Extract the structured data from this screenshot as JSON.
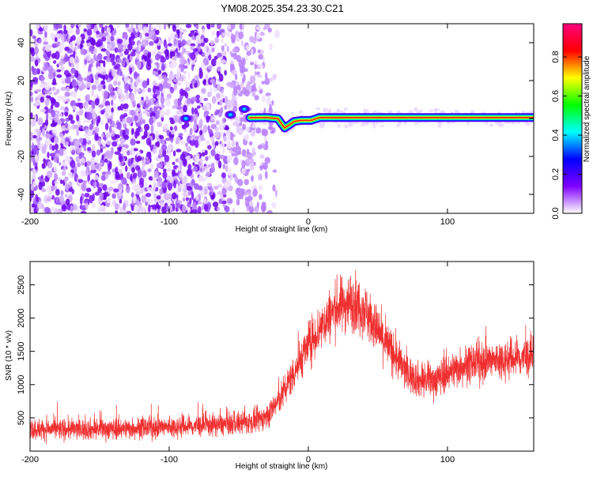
{
  "title": "YM08.2025.354.23.30.C21",
  "chart_data": [
    {
      "type": "heatmap",
      "name": "spectrogram",
      "xlabel": "Height of straight line (km)",
      "ylabel": "Frequency (Hz)",
      "xlim": [
        -200,
        162
      ],
      "ylim": [
        -50,
        50
      ],
      "xticks": [
        -200,
        -100,
        0,
        100
      ],
      "xtick_labels": [
        "-200",
        "-100",
        "0",
        "100"
      ],
      "yticks": [
        -40,
        -20,
        0,
        20,
        40
      ],
      "ytick_labels": [
        "-40",
        "-20",
        "0",
        "20",
        "40"
      ],
      "colorbar": {
        "label": "Normalized spectral amplitude",
        "range": [
          0,
          0.97
        ],
        "ticks": [
          0.0,
          0.2,
          0.4,
          0.6,
          0.8
        ],
        "tick_labels": [
          "0.0",
          "0.2",
          "0.4",
          "0.6",
          "0.8"
        ],
        "colors": [
          "#ffffff",
          "#8000ff",
          "#0000ff",
          "#00ffff",
          "#00ff00",
          "#ffff00",
          "#ff0000",
          "#ff0080"
        ]
      },
      "band": {
        "x_start": -42,
        "x_end": 162,
        "center_profile": [
          [
            -42,
            0.4
          ],
          [
            -30,
            0.5
          ],
          [
            -22,
            0
          ],
          [
            -17,
            -5
          ],
          [
            -14,
            -3.5
          ],
          [
            -10,
            -1.5
          ],
          [
            -5,
            -1
          ],
          [
            2,
            -1
          ],
          [
            6,
            0
          ],
          [
            8,
            0.5
          ],
          [
            162,
            0.5
          ]
        ]
      },
      "noise_region": {
        "x_start": -200,
        "x_end": -32,
        "density": "high"
      },
      "blobs": [
        {
          "x": -88,
          "y": 0,
          "peak": 0.3
        },
        {
          "x": -56,
          "y": 2,
          "peak": 0.25
        },
        {
          "x": -46,
          "y": 5,
          "peak": 0.35
        }
      ]
    },
    {
      "type": "line",
      "name": "snr",
      "xlabel": "Height of straight line (km)",
      "ylabel": "SNR (10 * v/v)",
      "xlim": [
        -200,
        162
      ],
      "ylim": [
        0,
        2850
      ],
      "xticks": [
        -200,
        -100,
        0,
        100
      ],
      "xtick_labels": [
        "-200",
        "-100",
        "0",
        "100"
      ],
      "yticks": [
        500,
        1000,
        1500,
        2000,
        2500
      ],
      "ytick_labels": [
        "500",
        "1000",
        "1500",
        "2000",
        "2500"
      ],
      "color": "#f03030",
      "trend": [
        [
          -200,
          330
        ],
        [
          -150,
          330
        ],
        [
          -100,
          360
        ],
        [
          -60,
          400
        ],
        [
          -40,
          440
        ],
        [
          -30,
          520
        ],
        [
          -20,
          800
        ],
        [
          -10,
          1200
        ],
        [
          0,
          1600
        ],
        [
          10,
          1900
        ],
        [
          20,
          2150
        ],
        [
          30,
          2250
        ],
        [
          40,
          2150
        ],
        [
          50,
          1800
        ],
        [
          60,
          1500
        ],
        [
          70,
          1200
        ],
        [
          80,
          1060
        ],
        [
          90,
          1060
        ],
        [
          100,
          1180
        ],
        [
          110,
          1280
        ],
        [
          120,
          1330
        ],
        [
          130,
          1350
        ],
        [
          140,
          1380
        ],
        [
          150,
          1400
        ],
        [
          162,
          1420
        ]
      ]
    }
  ]
}
